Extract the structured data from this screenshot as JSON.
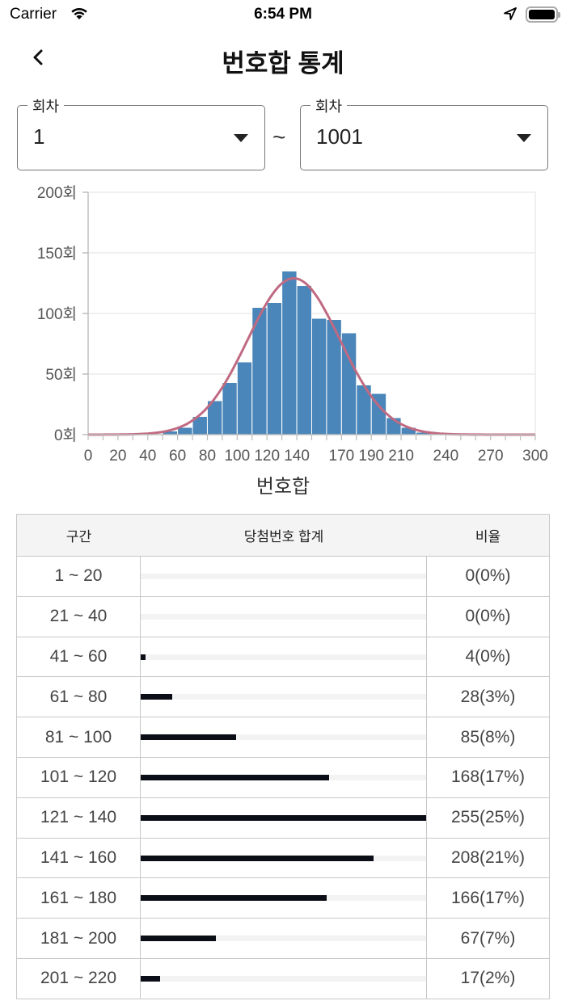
{
  "status_bar": {
    "carrier": "Carrier",
    "time": "6:54 PM",
    "icons": [
      "wifi-icon",
      "location-arrow-icon",
      "battery-icon"
    ]
  },
  "nav": {
    "back_icon": "chevron-left-icon",
    "title": "번호합 통계"
  },
  "filters": {
    "from": {
      "label": "회차",
      "value": "1"
    },
    "separator": "~",
    "to": {
      "label": "회차",
      "value": "1001"
    }
  },
  "chart_data": {
    "type": "bar",
    "subtype": "histogram_with_normal_curve",
    "title": "",
    "xlabel": "번호합",
    "ylabel": "",
    "xlim": [
      0,
      300
    ],
    "ylim": [
      0,
      200
    ],
    "grid": true,
    "y_ticks": [
      "0회",
      "50회",
      "100회",
      "150회",
      "200회"
    ],
    "y_tick_values": [
      0,
      50,
      100,
      150,
      200
    ],
    "x_ticks": [
      "0",
      "20",
      "40",
      "60",
      "80",
      "100",
      "120",
      "140",
      "170",
      "190",
      "210",
      "240",
      "270",
      "300"
    ],
    "x_tick_values": [
      0,
      20,
      40,
      60,
      80,
      100,
      120,
      140,
      170,
      190,
      210,
      240,
      270,
      300
    ],
    "bin_width": 10,
    "bins": [
      {
        "start": 50,
        "end": 60,
        "count": 3
      },
      {
        "start": 60,
        "end": 70,
        "count": 6
      },
      {
        "start": 70,
        "end": 80,
        "count": 15
      },
      {
        "start": 80,
        "end": 90,
        "count": 28
      },
      {
        "start": 90,
        "end": 100,
        "count": 43
      },
      {
        "start": 100,
        "end": 110,
        "count": 60
      },
      {
        "start": 110,
        "end": 120,
        "count": 105
      },
      {
        "start": 120,
        "end": 130,
        "count": 109
      },
      {
        "start": 130,
        "end": 140,
        "count": 135
      },
      {
        "start": 140,
        "end": 150,
        "count": 123
      },
      {
        "start": 150,
        "end": 160,
        "count": 96
      },
      {
        "start": 160,
        "end": 170,
        "count": 95
      },
      {
        "start": 170,
        "end": 180,
        "count": 84
      },
      {
        "start": 180,
        "end": 190,
        "count": 41
      },
      {
        "start": 190,
        "end": 200,
        "count": 34
      },
      {
        "start": 200,
        "end": 210,
        "count": 14
      },
      {
        "start": 210,
        "end": 220,
        "count": 6
      },
      {
        "start": 220,
        "end": 230,
        "count": 2
      }
    ],
    "curve": {
      "name": "normal-fit",
      "mean": 138,
      "peak": 129,
      "sigma": 31
    },
    "colors": {
      "bar": "#4a86b9",
      "bar_edge": "#ffffff",
      "curve": "#c06a82",
      "grid": "#e0e0e0",
      "axis": "#bdbdbd",
      "tick_label": "#555555"
    }
  },
  "table": {
    "headers": [
      "구간",
      "당첨번호 합계",
      "비율"
    ],
    "max_count": 255,
    "rows": [
      {
        "range": "1 ~ 20",
        "count": 0,
        "ratio": "0(0%)"
      },
      {
        "range": "21 ~ 40",
        "count": 0,
        "ratio": "0(0%)"
      },
      {
        "range": "41 ~ 60",
        "count": 4,
        "ratio": "4(0%)"
      },
      {
        "range": "61 ~ 80",
        "count": 28,
        "ratio": "28(3%)"
      },
      {
        "range": "81 ~ 100",
        "count": 85,
        "ratio": "85(8%)"
      },
      {
        "range": "101 ~ 120",
        "count": 168,
        "ratio": "168(17%)"
      },
      {
        "range": "121 ~ 140",
        "count": 255,
        "ratio": "255(25%)"
      },
      {
        "range": "141 ~ 160",
        "count": 208,
        "ratio": "208(21%)"
      },
      {
        "range": "161 ~ 180",
        "count": 166,
        "ratio": "166(17%)"
      },
      {
        "range": "181 ~ 200",
        "count": 67,
        "ratio": "67(7%)"
      },
      {
        "range": "201 ~ 220",
        "count": 17,
        "ratio": "17(2%)"
      }
    ],
    "colors": {
      "bar": "#0b0e16",
      "track": "#f3f3f3",
      "header_bg": "#f4f4f4",
      "border": "#c8c8c8"
    }
  }
}
